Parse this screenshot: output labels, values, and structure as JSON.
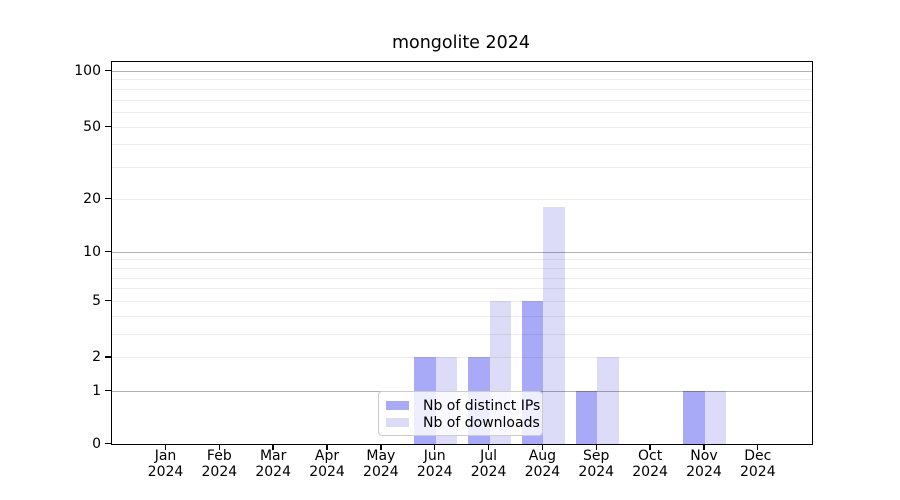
{
  "chart_data": {
    "type": "bar",
    "title": "mongolite 2024",
    "categories": [
      "Jan 2024",
      "Feb 2024",
      "Mar 2024",
      "Apr 2024",
      "May 2024",
      "Jun 2024",
      "Jul 2024",
      "Aug 2024",
      "Sep 2024",
      "Oct 2024",
      "Nov 2024",
      "Dec 2024"
    ],
    "series": [
      {
        "name": "Nb of distinct IPs",
        "color": "#a8a9f7",
        "values": [
          0,
          0,
          0,
          0,
          0,
          2,
          2,
          5,
          1,
          0,
          1,
          0
        ]
      },
      {
        "name": "Nb of downloads",
        "color": "#dcdcf9",
        "values": [
          0,
          0,
          0,
          0,
          0,
          2,
          5,
          18,
          2,
          0,
          1,
          0
        ]
      }
    ],
    "yticks": [
      0,
      1,
      2,
      5,
      10,
      20,
      50,
      100
    ],
    "major_gridlines": [
      1,
      10,
      100
    ],
    "minor_gridlines": [
      2,
      3,
      4,
      5,
      6,
      7,
      8,
      9,
      20,
      30,
      40,
      50,
      60,
      70,
      80,
      90
    ],
    "yscale": "log1p",
    "ylim": [
      0,
      112
    ],
    "xlabel": "",
    "ylabel": "",
    "grid": true,
    "legend_position": "lower center",
    "text_color": "#000000",
    "frame_color": "#000000"
  }
}
